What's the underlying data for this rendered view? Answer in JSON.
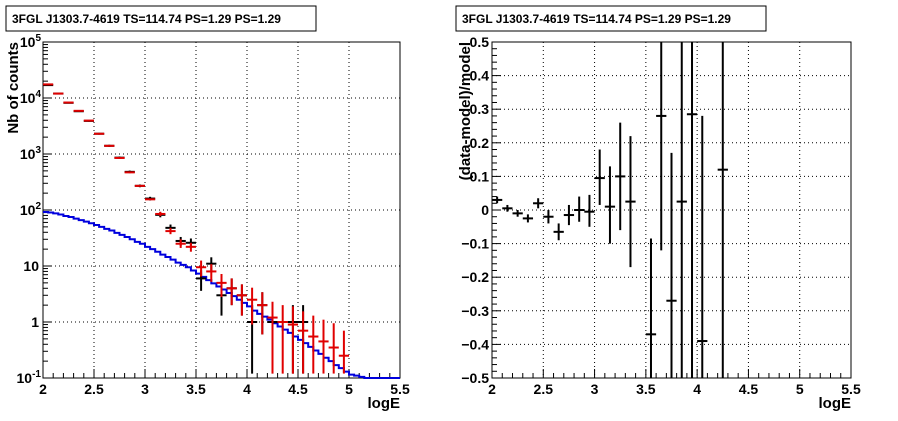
{
  "chart_data": [
    {
      "id": "counts",
      "type": "histogram",
      "title": "3FGL J1303.7-4619 TS=114.74 PS=1.29 PS=1.29",
      "xlabel": "logE",
      "ylabel": "Nb of counts",
      "xlim": [
        2,
        5.5
      ],
      "ylim": [
        0.1,
        100000
      ],
      "yscale": "log",
      "grid": true,
      "xticks": [
        2,
        2.5,
        3,
        3.5,
        4,
        4.5,
        5,
        5.5
      ],
      "xtick_labels": [
        "2",
        "2.5",
        "3",
        "3.5",
        "4",
        "4.5",
        "5",
        "5.5"
      ],
      "yticks": [
        0.1,
        1,
        10,
        100,
        1000,
        10000,
        100000
      ],
      "ytick_labels": [
        {
          "base": "10",
          "exp": "-1"
        },
        {
          "base": "1",
          "exp": ""
        },
        {
          "base": "10",
          "exp": ""
        },
        {
          "base": "10",
          "exp": "2"
        },
        {
          "base": "10",
          "exp": "3"
        },
        {
          "base": "10",
          "exp": "4"
        },
        {
          "base": "10",
          "exp": "5"
        }
      ],
      "series": [
        {
          "kind": "data",
          "color": "#000000",
          "points": [
            {
              "x": 2.05,
              "y": 17000,
              "lo": 16800,
              "hi": 17200
            },
            {
              "x": 2.15,
              "y": 12000,
              "lo": 11800,
              "hi": 12200
            },
            {
              "x": 2.25,
              "y": 8200,
              "lo": 8000,
              "hi": 8400
            },
            {
              "x": 2.35,
              "y": 5800,
              "lo": 5650,
              "hi": 5950
            },
            {
              "x": 2.45,
              "y": 3900,
              "lo": 3780,
              "hi": 4020
            },
            {
              "x": 2.55,
              "y": 2300,
              "lo": 2220,
              "hi": 2380
            },
            {
              "x": 2.65,
              "y": 1400,
              "lo": 1340,
              "hi": 1460
            },
            {
              "x": 2.75,
              "y": 860,
              "lo": 820,
              "hi": 900
            },
            {
              "x": 2.85,
              "y": 480,
              "lo": 455,
              "hi": 505
            },
            {
              "x": 2.95,
              "y": 270,
              "lo": 255,
              "hi": 285
            },
            {
              "x": 3.05,
              "y": 160,
              "lo": 148,
              "hi": 172
            },
            {
              "x": 3.15,
              "y": 82,
              "lo": 74,
              "hi": 91
            },
            {
              "x": 3.25,
              "y": 48,
              "lo": 42,
              "hi": 55
            },
            {
              "x": 3.35,
              "y": 28,
              "lo": 23,
              "hi": 33
            },
            {
              "x": 3.45,
              "y": 26,
              "lo": 21,
              "hi": 31
            },
            {
              "x": 3.55,
              "y": 6,
              "lo": 3.6,
              "hi": 8.4
            },
            {
              "x": 3.65,
              "y": 11,
              "lo": 7.7,
              "hi": 14.3
            },
            {
              "x": 3.75,
              "y": 3,
              "lo": 1.3,
              "hi": 4.7
            },
            {
              "x": 3.85,
              "y": 4,
              "lo": 2,
              "hi": 6
            },
            {
              "x": 3.95,
              "y": 3,
              "lo": 1.3,
              "hi": 4.7
            },
            {
              "x": 4.05,
              "y": 1,
              "lo": 0.12,
              "hi": 2
            },
            {
              "x": 4.15,
              "y": 2,
              "lo": 0.6,
              "hi": 3.4
            },
            {
              "x": 4.25,
              "y": 1,
              "lo": 0.12,
              "hi": 2
            },
            {
              "x": 4.45,
              "y": 1,
              "lo": 0.12,
              "hi": 2
            },
            {
              "x": 4.55,
              "y": 1,
              "lo": 0.12,
              "hi": 2
            }
          ]
        },
        {
          "kind": "model-total",
          "color": "#e00000",
          "points": [
            {
              "x": 2.05,
              "y": 17500,
              "lo": 17500,
              "hi": 17500
            },
            {
              "x": 2.15,
              "y": 12000,
              "lo": 12000,
              "hi": 12000
            },
            {
              "x": 2.25,
              "y": 8300,
              "lo": 8300,
              "hi": 8300
            },
            {
              "x": 2.35,
              "y": 5900,
              "lo": 5900,
              "hi": 5900
            },
            {
              "x": 2.45,
              "y": 3950,
              "lo": 3950,
              "hi": 3950
            },
            {
              "x": 2.55,
              "y": 2300,
              "lo": 2300,
              "hi": 2300
            },
            {
              "x": 2.65,
              "y": 1400,
              "lo": 1400,
              "hi": 1400
            },
            {
              "x": 2.75,
              "y": 850,
              "lo": 850,
              "hi": 850
            },
            {
              "x": 2.85,
              "y": 470,
              "lo": 470,
              "hi": 470
            },
            {
              "x": 2.95,
              "y": 270,
              "lo": 270,
              "hi": 270
            },
            {
              "x": 3.05,
              "y": 155,
              "lo": 155,
              "hi": 155
            },
            {
              "x": 3.15,
              "y": 85,
              "lo": 78,
              "hi": 93
            },
            {
              "x": 3.25,
              "y": 42,
              "lo": 37,
              "hi": 48
            },
            {
              "x": 3.35,
              "y": 25,
              "lo": 21,
              "hi": 30
            },
            {
              "x": 3.45,
              "y": 22,
              "lo": 18,
              "hi": 26
            },
            {
              "x": 3.55,
              "y": 9.5,
              "lo": 6.5,
              "hi": 12.5
            },
            {
              "x": 3.65,
              "y": 8,
              "lo": 5.2,
              "hi": 10.8
            },
            {
              "x": 3.75,
              "y": 5,
              "lo": 2.8,
              "hi": 7.2
            },
            {
              "x": 3.85,
              "y": 4,
              "lo": 2,
              "hi": 6
            },
            {
              "x": 3.95,
              "y": 3,
              "lo": 1.3,
              "hi": 4.7
            },
            {
              "x": 4.05,
              "y": 2.5,
              "lo": 0.9,
              "hi": 4.1
            },
            {
              "x": 4.15,
              "y": 2,
              "lo": 0.6,
              "hi": 3.4
            },
            {
              "x": 4.25,
              "y": 1.2,
              "lo": 0.12,
              "hi": 2.3
            },
            {
              "x": 4.35,
              "y": 1,
              "lo": 0.12,
              "hi": 2
            },
            {
              "x": 4.45,
              "y": 0.9,
              "lo": 0.12,
              "hi": 1.9
            },
            {
              "x": 4.55,
              "y": 0.7,
              "lo": 0.12,
              "hi": 1.55
            },
            {
              "x": 4.65,
              "y": 0.55,
              "lo": 0.12,
              "hi": 1.3
            },
            {
              "x": 4.75,
              "y": 0.45,
              "lo": 0.12,
              "hi": 1.1
            },
            {
              "x": 4.85,
              "y": 0.35,
              "lo": 0.12,
              "hi": 0.95
            },
            {
              "x": 4.95,
              "y": 0.25,
              "lo": 0.12,
              "hi": 0.7
            }
          ]
        },
        {
          "kind": "model-source",
          "color": "#0000dd",
          "step_edges": [
            2.0,
            2.05,
            2.1,
            2.15,
            2.2,
            2.25,
            2.3,
            2.35,
            2.4,
            2.45,
            2.5,
            2.55,
            2.6,
            2.65,
            2.7,
            2.75,
            2.8,
            2.85,
            2.9,
            2.95,
            3.0,
            3.05,
            3.1,
            3.15,
            3.2,
            3.25,
            3.3,
            3.35,
            3.4,
            3.45,
            3.5,
            3.55,
            3.6,
            3.65,
            3.7,
            3.75,
            3.8,
            3.85,
            3.9,
            3.95,
            4.0,
            4.05,
            4.1,
            4.15,
            4.2,
            4.25,
            4.3,
            4.35,
            4.4,
            4.45,
            4.5,
            4.55,
            4.6,
            4.65,
            4.7,
            4.75,
            4.8,
            4.85,
            4.9,
            4.95,
            5.0,
            5.05,
            5.1,
            5.15,
            5.2,
            5.25,
            5.3,
            5.35,
            5.4,
            5.45,
            5.5
          ],
          "values": [
            92,
            90,
            87,
            83,
            78,
            75,
            70,
            66,
            62,
            58,
            54,
            50,
            46,
            43,
            39,
            36,
            33,
            30,
            27,
            25,
            22,
            20,
            18,
            16,
            14.5,
            13,
            11.5,
            10.5,
            9.5,
            8.3,
            7.3,
            6.4,
            5.6,
            4.9,
            4.3,
            3.8,
            3.3,
            2.9,
            2.5,
            2.2,
            1.9,
            1.6,
            1.4,
            1.25,
            1.1,
            0.95,
            0.83,
            0.73,
            0.64,
            0.55,
            0.48,
            0.42,
            0.36,
            0.31,
            0.27,
            0.23,
            0.2,
            0.17,
            0.15,
            0.13,
            0.115,
            0.11,
            0.105,
            0.1,
            0.1,
            0.1,
            0.1,
            0.1,
            0.1,
            0.1
          ]
        }
      ]
    },
    {
      "id": "residuals",
      "type": "scatter",
      "title": "3FGL J1303.7-4619 TS=114.74 PS=1.29 PS=1.29",
      "xlabel": "logE",
      "ylabel": "(data-model)/model",
      "xlim": [
        2,
        5.5
      ],
      "ylim": [
        -0.5,
        0.5
      ],
      "grid": true,
      "xticks": [
        2,
        2.5,
        3,
        3.5,
        4,
        4.5,
        5,
        5.5
      ],
      "xtick_labels": [
        "2",
        "2.5",
        "3",
        "3.5",
        "4",
        "4.5",
        "5",
        "5.5"
      ],
      "yticks": [
        -0.5,
        -0.4,
        -0.3,
        -0.2,
        -0.1,
        0,
        0.1,
        0.2,
        0.3,
        0.4,
        0.5
      ],
      "ytick_labels": [
        "−0.5",
        "−0.4",
        "−0.3",
        "−0.2",
        "−0.1",
        "0",
        "0.1",
        "0.2",
        "0.3",
        "0.4",
        "0.5"
      ],
      "points": [
        {
          "x": 2.05,
          "y": 0.03,
          "lo": 0.02,
          "hi": 0.04
        },
        {
          "x": 2.15,
          "y": 0.005,
          "lo": -0.005,
          "hi": 0.015
        },
        {
          "x": 2.25,
          "y": -0.01,
          "lo": -0.02,
          "hi": 0.0
        },
        {
          "x": 2.35,
          "y": -0.025,
          "lo": -0.037,
          "hi": -0.013
        },
        {
          "x": 2.45,
          "y": 0.02,
          "lo": 0.005,
          "hi": 0.035
        },
        {
          "x": 2.55,
          "y": -0.02,
          "lo": -0.04,
          "hi": 0.0
        },
        {
          "x": 2.65,
          "y": -0.065,
          "lo": -0.09,
          "hi": -0.04
        },
        {
          "x": 2.75,
          "y": -0.015,
          "lo": -0.045,
          "hi": 0.015
        },
        {
          "x": 2.85,
          "y": 0.0,
          "lo": -0.035,
          "hi": 0.04
        },
        {
          "x": 2.95,
          "y": -0.005,
          "lo": -0.05,
          "hi": 0.045
        },
        {
          "x": 3.05,
          "y": 0.095,
          "lo": 0.015,
          "hi": 0.18
        },
        {
          "x": 3.15,
          "y": 0.01,
          "lo": -0.1,
          "hi": 0.13
        },
        {
          "x": 3.25,
          "y": 0.1,
          "lo": -0.06,
          "hi": 0.26
        },
        {
          "x": 3.35,
          "y": 0.025,
          "lo": -0.17,
          "hi": 0.22
        },
        {
          "x": 3.55,
          "y": -0.37,
          "lo": -0.5,
          "hi": -0.085
        },
        {
          "x": 3.65,
          "y": 0.28,
          "lo": -0.12,
          "hi": 0.5
        },
        {
          "x": 3.75,
          "y": -0.27,
          "lo": -0.5,
          "hi": 0.17
        },
        {
          "x": 3.85,
          "y": 0.025,
          "lo": -0.5,
          "hi": 0.5
        },
        {
          "x": 3.95,
          "y": 0.285,
          "lo": -0.5,
          "hi": 0.5
        },
        {
          "x": 4.05,
          "y": -0.39,
          "lo": -0.5,
          "hi": 0.28
        },
        {
          "x": 4.25,
          "y": 0.12,
          "lo": -0.5,
          "hi": 0.5
        }
      ]
    }
  ]
}
